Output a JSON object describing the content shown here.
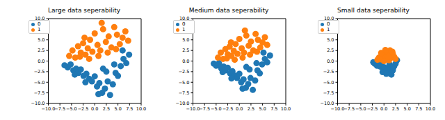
{
  "chart_data": [
    {
      "type": "scatter",
      "title": "Large data seperability",
      "legend": "upper left",
      "xlim": [
        -10,
        10
      ],
      "ylim": [
        -10,
        10
      ],
      "xticks": [
        {
          "value": -10,
          "label": "−10.0"
        },
        {
          "value": -7.5,
          "label": "−7.5"
        },
        {
          "value": -5,
          "label": "−5.0"
        },
        {
          "value": -2.5,
          "label": "−2.5"
        },
        {
          "value": 0,
          "label": "0.0"
        },
        2.5,
        {
          "value": 5,
          "label": "5.0"
        },
        7.5,
        {
          "value": 10,
          "label": "10.0"
        }
      ],
      "yticks": [
        {
          "value": -10,
          "label": "−10.0"
        },
        {
          "value": -7.5,
          "label": "−7.5"
        },
        {
          "value": -5,
          "label": "−5.0"
        },
        {
          "value": -2.5,
          "label": "−2.5"
        },
        {
          "value": 0,
          "label": "0.0"
        },
        2.5,
        {
          "value": 5,
          "label": "5.0"
        },
        7.5,
        {
          "value": 10,
          "label": "10.0"
        }
      ],
      "series": [
        {
          "name": "0",
          "color": "#1f77b4",
          "x": [
            -6.5,
            -5.8,
            -5.2,
            -4.6,
            -4.0,
            -3.5,
            -3.0,
            -2.4,
            -1.8,
            -1.2,
            -0.6,
            0.0,
            0.5,
            1.0,
            1.6,
            2.2,
            2.8,
            3.3,
            3.9,
            4.5,
            5.0,
            5.6,
            6.2,
            6.8,
            7.4,
            -2.0,
            0.8,
            2.5,
            4.2,
            6.0,
            -4.3,
            1.8
          ],
          "values": [
            -1.0,
            -1.5,
            -0.8,
            -2.2,
            -1.8,
            -2.8,
            -2.0,
            -3.5,
            -3.0,
            -4.2,
            -4.8,
            -3.6,
            -6.0,
            -5.2,
            -7.5,
            -6.5,
            -4.8,
            -8.0,
            -5.5,
            -2.8,
            -3.5,
            -1.2,
            0.5,
            -0.5,
            1.5,
            -5.0,
            -7.8,
            -2.5,
            -0.8,
            2.5,
            -3.2,
            -1.8
          ]
        },
        {
          "name": "1",
          "color": "#ff7f0e",
          "x": [
            -5.5,
            -4.8,
            -4.2,
            -3.6,
            -3.0,
            -2.5,
            -2.0,
            -1.5,
            -1.0,
            -0.5,
            0.0,
            0.6,
            1.2,
            1.8,
            2.4,
            3.0,
            3.6,
            4.2,
            4.8,
            5.4,
            6.0,
            6.6,
            7.2,
            -3.2,
            -1.2,
            0.8,
            2.8,
            4.6,
            -2.2,
            1.5
          ],
          "values": [
            1.2,
            2.5,
            0.8,
            3.5,
            2.0,
            4.2,
            1.5,
            3.0,
            5.0,
            2.2,
            6.5,
            3.8,
            2.5,
            7.5,
            4.5,
            5.8,
            3.2,
            8.0,
            6.2,
            4.0,
            5.5,
            7.0,
            4.8,
            1.0,
            0.5,
            1.2,
            2.0,
            2.8,
            5.5,
            9.0
          ]
        }
      ]
    },
    {
      "type": "scatter",
      "title": "Medium data seperability",
      "legend": "upper left",
      "xlim": [
        -10,
        10
      ],
      "ylim": [
        -10,
        10
      ],
      "xticks": [
        {
          "value": -10,
          "label": "−10.0"
        },
        {
          "value": -7.5,
          "label": "−7.5"
        },
        {
          "value": -5,
          "label": "−5.0"
        },
        {
          "value": -2.5,
          "label": "−2.5"
        },
        {
          "value": 0,
          "label": "0.0"
        },
        2.5,
        {
          "value": 5,
          "label": "5.0"
        },
        7.5,
        {
          "value": 10,
          "label": "10.0"
        }
      ],
      "yticks": [
        {
          "value": -10,
          "label": "−10.0"
        },
        {
          "value": -7.5,
          "label": "−7.5"
        },
        {
          "value": -5,
          "label": "−5.0"
        },
        {
          "value": -2.5,
          "label": "−2.5"
        },
        {
          "value": 0,
          "label": "0.0"
        },
        2.5,
        {
          "value": 5,
          "label": "5.0"
        },
        7.5,
        {
          "value": 10,
          "label": "10.0"
        }
      ],
      "series": [
        {
          "name": "0",
          "color": "#1f77b4",
          "x": [
            -5.5,
            -5.0,
            -4.4,
            -3.9,
            -3.4,
            -3.0,
            -2.5,
            -2.0,
            -1.5,
            -1.0,
            -0.5,
            0.0,
            0.4,
            0.9,
            1.4,
            1.9,
            2.4,
            2.9,
            3.4,
            3.9,
            4.4,
            4.9,
            5.5,
            6.0,
            6.6,
            -1.7,
            0.7,
            2.2,
            3.7,
            5.2,
            -3.6,
            1.5
          ],
          "values": [
            -0.6,
            -1.1,
            -0.5,
            -1.7,
            -1.3,
            -2.2,
            -1.6,
            -2.9,
            -2.4,
            -3.4,
            -4.0,
            -3.0,
            -5.0,
            -4.3,
            -6.3,
            -5.4,
            -4.0,
            -6.8,
            -4.6,
            -2.2,
            -2.9,
            -0.8,
            0.5,
            -0.3,
            1.3,
            -4.1,
            -6.5,
            -2.0,
            -0.5,
            2.0,
            -2.6,
            -1.4
          ]
        },
        {
          "name": "1",
          "color": "#ff7f0e",
          "x": [
            -4.6,
            -4.0,
            -3.5,
            -3.0,
            -2.5,
            -2.1,
            -1.7,
            -1.2,
            -0.8,
            -0.4,
            0.0,
            0.5,
            1.0,
            1.5,
            2.0,
            2.5,
            3.0,
            3.5,
            4.0,
            4.5,
            5.0,
            5.5,
            6.0,
            -2.7,
            -1.0,
            0.7,
            2.3,
            3.8,
            -1.8,
            1.2
          ],
          "values": [
            0.8,
            2.0,
            0.5,
            2.8,
            1.6,
            3.4,
            1.2,
            2.4,
            4.0,
            1.7,
            5.2,
            3.0,
            2.0,
            6.0,
            3.6,
            4.6,
            2.5,
            6.4,
            5.0,
            3.2,
            4.4,
            5.6,
            3.8,
            0.6,
            0.3,
            0.8,
            1.5,
            2.2,
            4.4,
            7.2
          ]
        }
      ]
    },
    {
      "type": "scatter",
      "title": "Small data seperability",
      "legend": "upper left",
      "xlim": [
        -10,
        10
      ],
      "ylim": [
        -10,
        10
      ],
      "xticks": [
        {
          "value": -10,
          "label": "−10.0"
        },
        {
          "value": -7.5,
          "label": "−7.5"
        },
        {
          "value": -5,
          "label": "−5.0"
        },
        {
          "value": -2.5,
          "label": "−2.5"
        },
        {
          "value": 0,
          "label": "0.0"
        },
        2.5,
        {
          "value": 5,
          "label": "5.0"
        },
        7.5,
        {
          "value": 10,
          "label": "10.0"
        }
      ],
      "yticks": [
        {
          "value": -10,
          "label": "−10.0"
        },
        {
          "value": -7.5,
          "label": "−7.5"
        },
        {
          "value": -5,
          "label": "−5.0"
        },
        {
          "value": -2.5,
          "label": "−2.5"
        },
        {
          "value": 0,
          "label": "0.0"
        },
        2.5,
        {
          "value": 5,
          "label": "5.0"
        },
        7.5,
        {
          "value": 10,
          "label": "10.0"
        }
      ],
      "series": [
        {
          "name": "0",
          "color": "#1f77b4",
          "x": [
            -2.3,
            -2.0,
            -1.7,
            -1.4,
            -1.1,
            -0.8,
            -0.5,
            -0.2,
            0.1,
            0.4,
            0.7,
            1.0,
            1.3,
            1.6,
            1.9,
            2.2,
            2.5,
            2.8,
            -1.5,
            -0.3,
            0.5,
            1.2,
            2.0,
            -0.9
          ],
          "values": [
            -0.3,
            -0.6,
            -0.2,
            -0.9,
            -0.7,
            -1.3,
            -1.0,
            -1.8,
            -1.5,
            -2.4,
            -2.0,
            -2.8,
            -1.6,
            -3.2,
            -2.2,
            -1.2,
            -0.6,
            0.2,
            -1.1,
            -2.6,
            -3.0,
            -0.8,
            -1.6,
            -0.4
          ]
        },
        {
          "name": "1",
          "color": "#ff7f0e",
          "x": [
            -1.4,
            -1.1,
            -0.8,
            -0.5,
            -0.2,
            0.1,
            0.4,
            0.7,
            1.0,
            1.3,
            1.6,
            1.9,
            2.2,
            2.5,
            -0.6,
            0.3,
            1.1,
            1.8,
            0.0,
            0.9
          ],
          "values": [
            0.3,
            0.8,
            0.4,
            1.2,
            0.6,
            1.6,
            0.9,
            2.0,
            1.3,
            2.5,
            0.8,
            1.7,
            1.0,
            0.5,
            1.9,
            2.6,
            0.2,
            2.2,
            0.0,
            1.0
          ]
        }
      ]
    }
  ]
}
